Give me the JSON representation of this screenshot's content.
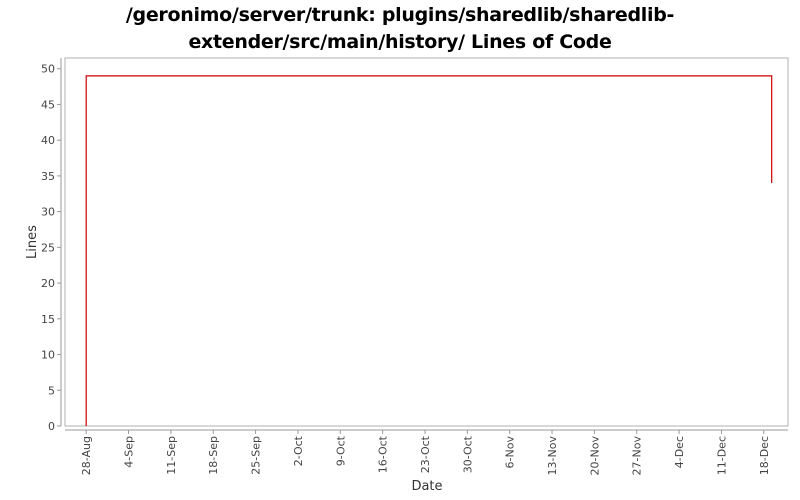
{
  "title_line1": "/geronimo/server/trunk: plugins/sharedlib/sharedlib-",
  "title_line2": "extender/src/main/history/ Lines of Code",
  "chart_data": {
    "type": "line",
    "title": "/geronimo/server/trunk: plugins/sharedlib/sharedlib-extender/src/main/history/ Lines of Code",
    "xlabel": "Date",
    "ylabel": "Lines",
    "x_tick_labels": [
      "28-Aug",
      "4-Sep",
      "11-Sep",
      "18-Sep",
      "25-Sep",
      "2-Oct",
      "9-Oct",
      "16-Oct",
      "23-Oct",
      "30-Oct",
      "6-Nov",
      "13-Nov",
      "20-Nov",
      "27-Nov",
      "4-Dec",
      "11-Dec",
      "18-Dec"
    ],
    "x_tick_days": [
      0,
      7,
      14,
      21,
      28,
      35,
      42,
      49,
      56,
      63,
      70,
      77,
      84,
      91,
      98,
      105,
      112
    ],
    "xlim_days": [
      -3.5,
      116
    ],
    "y_ticks": [
      0,
      5,
      10,
      15,
      20,
      25,
      30,
      35,
      40,
      45,
      50
    ],
    "ylim": [
      0,
      51.5
    ],
    "grid": false,
    "line_color": "#cc0000",
    "series": [
      {
        "x_days": [
          0,
          0,
          113.3,
          113.3
        ],
        "values": [
          0,
          49,
          49,
          34
        ]
      }
    ]
  }
}
